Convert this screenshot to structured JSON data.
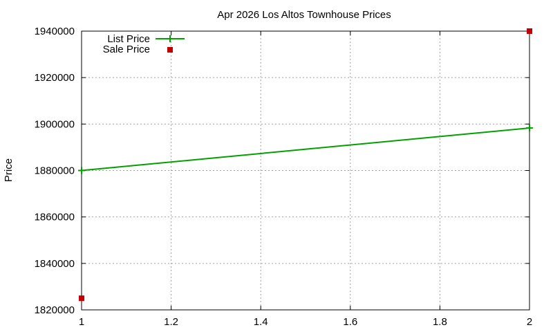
{
  "chart_data": {
    "type": "line",
    "title": "Apr 2026 Los Altos Townhouse Prices",
    "xlabel": "",
    "ylabel": "Price",
    "xlim": [
      1,
      2
    ],
    "ylim": [
      1820000,
      1940000
    ],
    "x_ticks": [
      "1",
      "1.2",
      "1.4",
      "1.6",
      "1.8",
      "2"
    ],
    "y_ticks": [
      "1820000",
      "1840000",
      "1860000",
      "1880000",
      "1900000",
      "1920000",
      "1940000"
    ],
    "grid": true,
    "legend_position": "top-left",
    "series": [
      {
        "name": "List Price",
        "style": "linespoints",
        "color": "#00a000",
        "x": [
          1,
          2
        ],
        "y": [
          1880000,
          1898300
        ]
      },
      {
        "name": "Sale Price",
        "style": "points",
        "marker": "square",
        "color": "#c00000",
        "x": [
          1,
          2
        ],
        "y": [
          1825000,
          1940000
        ]
      }
    ]
  }
}
